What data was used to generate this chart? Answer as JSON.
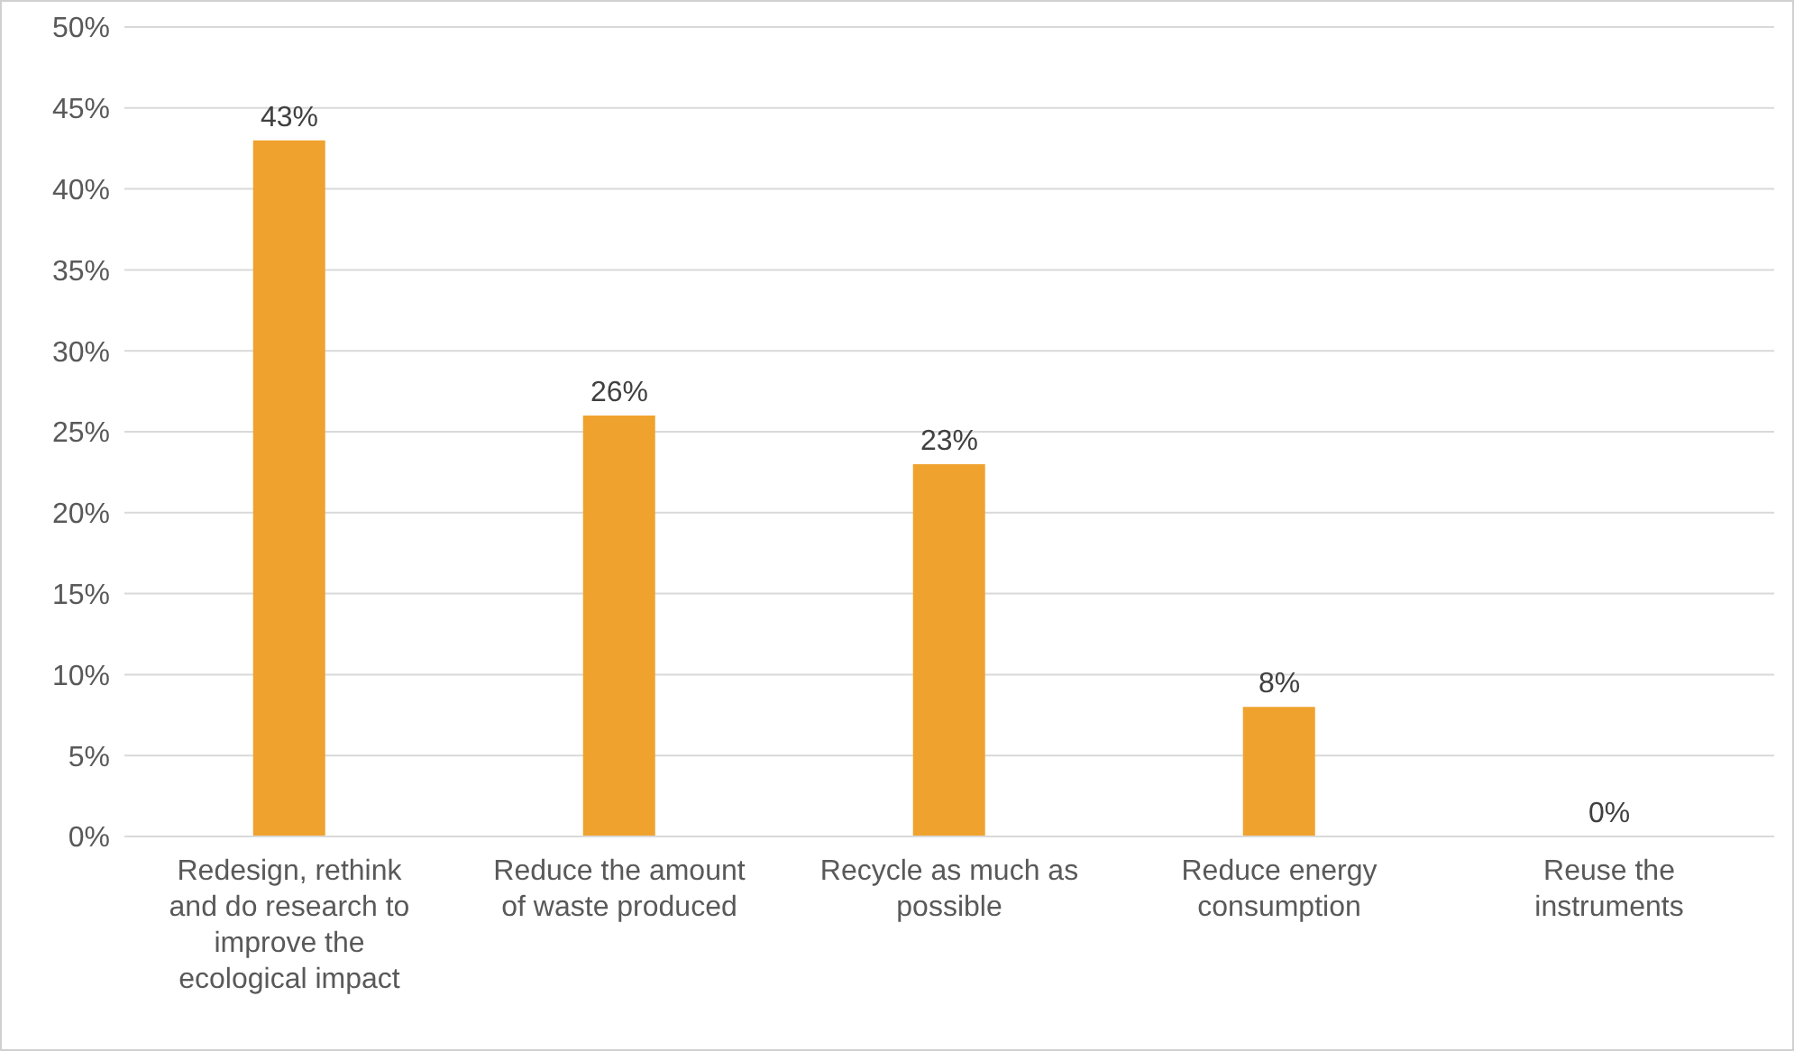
{
  "chart_data": {
    "type": "bar",
    "categories": [
      "Redesign, rethink and do research to improve the ecological impact",
      "Reduce the amount of waste produced",
      "Recycle as much as possible",
      "Reduce energy consumption",
      "Reuse the instruments"
    ],
    "values": [
      43,
      26,
      23,
      8,
      0
    ],
    "value_labels": [
      "43%",
      "26%",
      "23%",
      "8%",
      "0%"
    ],
    "color": "#f0a22e",
    "ylim": [
      0,
      50
    ],
    "yticks": [
      {
        "value": 0,
        "label": "0%"
      },
      {
        "value": 5,
        "label": "5%"
      },
      {
        "value": 10,
        "label": "10%"
      },
      {
        "value": 15,
        "label": "15%"
      },
      {
        "value": 20,
        "label": "20%"
      },
      {
        "value": 25,
        "label": "25%"
      },
      {
        "value": 30,
        "label": "30%"
      },
      {
        "value": 35,
        "label": "35%"
      },
      {
        "value": 40,
        "label": "40%"
      },
      {
        "value": 45,
        "label": "45%"
      },
      {
        "value": 50,
        "label": "50%"
      }
    ],
    "grid": "y",
    "legend": false
  }
}
